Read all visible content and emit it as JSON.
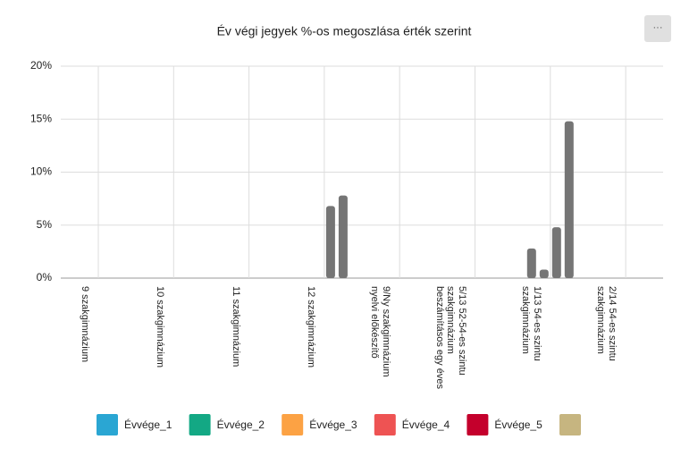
{
  "menu_label": "···",
  "chart_data": {
    "type": "bar",
    "title": "Év végi jegyek %-os megoszlása érték szerint",
    "categories": [
      "9 szakgimnázium",
      "10 szakgimnázium",
      "11 szakgimnázium",
      "12 szakgimnázium",
      "9/Ny szakgimnázium nyelvi előkészítő",
      "5/13 52-54-es szintu szakgimnázium beszámításos egy éves",
      "1/13 54-es szintu szakgimnázium",
      "2/14 54-es szintu szakgimnázium"
    ],
    "series": [
      {
        "name": "Évvége_1",
        "color": "#2aa6d3",
        "values": [
          0,
          0,
          0,
          0,
          0,
          0,
          0,
          0
        ]
      },
      {
        "name": "Évvége_2",
        "color": "#13a884",
        "values": [
          0,
          0,
          0,
          0,
          0,
          0,
          2.8,
          0
        ]
      },
      {
        "name": "Évvége_3",
        "color": "#fca244",
        "values": [
          0,
          0,
          0,
          0,
          0,
          0,
          0.8,
          0
        ]
      },
      {
        "name": "Évvége_4",
        "color": "#ee5353",
        "values": [
          0,
          0,
          0,
          6.8,
          0,
          0,
          4.8,
          0
        ]
      },
      {
        "name": "Évvége_5",
        "color": "#c4002c",
        "values": [
          0,
          0,
          0,
          7.8,
          0,
          0,
          14.8,
          0
        ]
      },
      {
        "color": "#c6b580",
        "values": [
          0,
          0,
          0,
          0,
          0,
          0,
          0,
          0
        ]
      }
    ],
    "bar_color": "#757575",
    "ylim": [
      0,
      20
    ],
    "yticks": [
      {
        "value": 0,
        "label": "0%"
      },
      {
        "value": 5,
        "label": "5%"
      },
      {
        "value": 10,
        "label": "10%"
      },
      {
        "value": 15,
        "label": "15%"
      },
      {
        "value": 20,
        "label": "20%"
      }
    ],
    "grid": true
  }
}
